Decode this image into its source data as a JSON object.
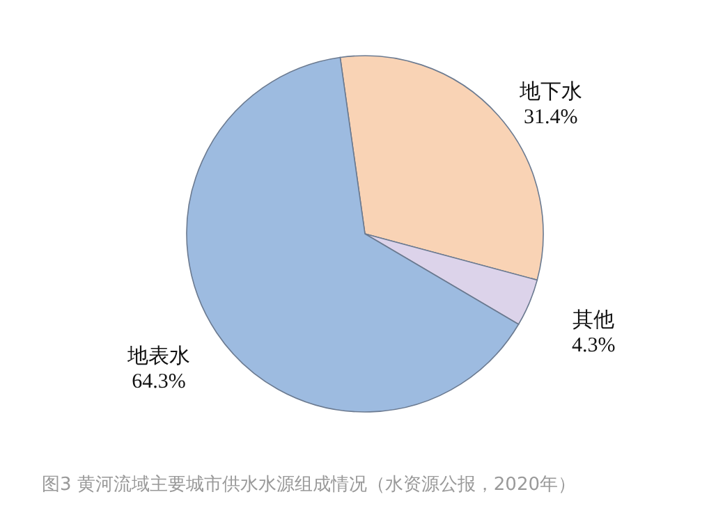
{
  "chart_data": {
    "type": "pie",
    "categories": [
      "地下水",
      "其他",
      "地表水"
    ],
    "values": [
      31.4,
      4.3,
      64.3
    ],
    "value_labels": [
      "31.4%",
      "4.3%",
      "64.3%"
    ],
    "colors": [
      "#f9d3b5",
      "#dcd3ea",
      "#9dbbe0"
    ],
    "annotations": [
      "图3 黄河流域主要城市供水水源组成情况（水资源公报，2020年）"
    ]
  }
}
